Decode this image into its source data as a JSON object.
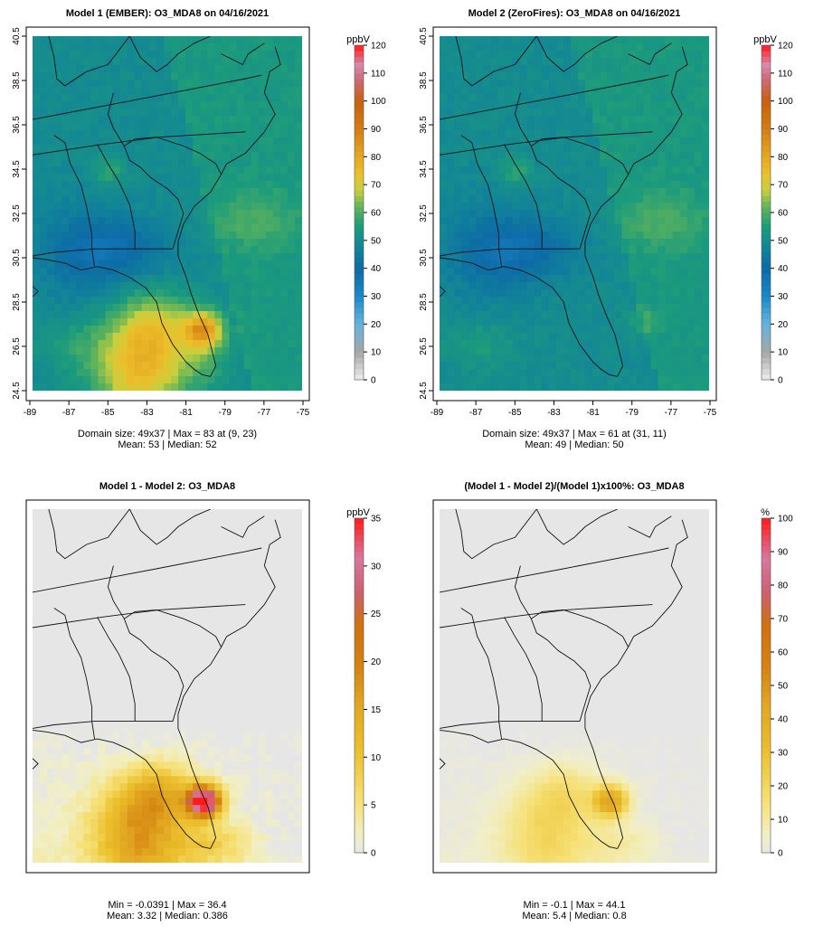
{
  "chart_data": [
    {
      "type": "heatmap",
      "title": "Model 1 (EMBER): O3_MDA8 on 04/16/2021",
      "colorbar": {
        "unit": "ppbV",
        "ticks": [
          "0",
          "10",
          "20",
          "30",
          "40",
          "50",
          "60",
          "70",
          "80",
          "90",
          "100",
          "110",
          "120"
        ],
        "range": [
          0,
          120
        ],
        "palette": "ozone"
      },
      "xlim": [
        -89,
        -75
      ],
      "ylim": [
        24.5,
        40.5
      ],
      "xticks": [
        "-89",
        "-87",
        "-85",
        "-83",
        "-81",
        "-79",
        "-77",
        "-75"
      ],
      "yticks": [
        "24.5",
        "26.5",
        "28.5",
        "30.5",
        "32.5",
        "34.5",
        "36.5",
        "38.5",
        "40.5"
      ],
      "stats_line1": "Domain size: 49x37 | Max = 83 at (9, 23)",
      "stats_line2": "Mean: 53 |  Median: 52",
      "field": "ember"
    },
    {
      "type": "heatmap",
      "title": "Model 2 (ZeroFires): O3_MDA8 on 04/16/2021",
      "colorbar": {
        "unit": "ppbV",
        "ticks": [
          "0",
          "10",
          "20",
          "30",
          "40",
          "50",
          "60",
          "70",
          "80",
          "90",
          "100",
          "110",
          "120"
        ],
        "range": [
          0,
          120
        ],
        "palette": "ozone"
      },
      "xlim": [
        -89,
        -75
      ],
      "ylim": [
        24.5,
        40.5
      ],
      "xticks": [
        "-89",
        "-87",
        "-85",
        "-83",
        "-81",
        "-79",
        "-77",
        "-75"
      ],
      "yticks": [
        "24.5",
        "26.5",
        "28.5",
        "30.5",
        "32.5",
        "34.5",
        "36.5",
        "38.5",
        "40.5"
      ],
      "stats_line1": "Domain size: 49x37 | Max = 61 at (31, 11)",
      "stats_line2": "Mean: 49 |  Median: 50",
      "field": "zerofires"
    },
    {
      "type": "heatmap",
      "title": "Model 1 - Model 2: O3_MDA8",
      "colorbar": {
        "unit": "ppbV",
        "ticks": [
          "0",
          "5",
          "10",
          "15",
          "20",
          "25",
          "30",
          "35"
        ],
        "range": [
          0,
          35
        ],
        "palette": "diff"
      },
      "stats_line1": "Min = -0.0391 | Max = 36.4",
      "stats_line2": "Mean: 3.32 |  Median: 0.386",
      "field": "diff"
    },
    {
      "type": "heatmap",
      "title": "(Model 1 - Model 2)/(Model 1)x100%: O3_MDA8",
      "colorbar": {
        "unit": "%",
        "ticks": [
          "0",
          "10",
          "20",
          "30",
          "40",
          "50",
          "60",
          "70",
          "80",
          "90",
          "100"
        ],
        "range": [
          0,
          100
        ],
        "palette": "diff"
      },
      "stats_line1": "Min = -0.1 | Max = 44.1",
      "stats_line2": "Mean: 5.4 |  Median: 0.8",
      "field": "pct"
    }
  ]
}
